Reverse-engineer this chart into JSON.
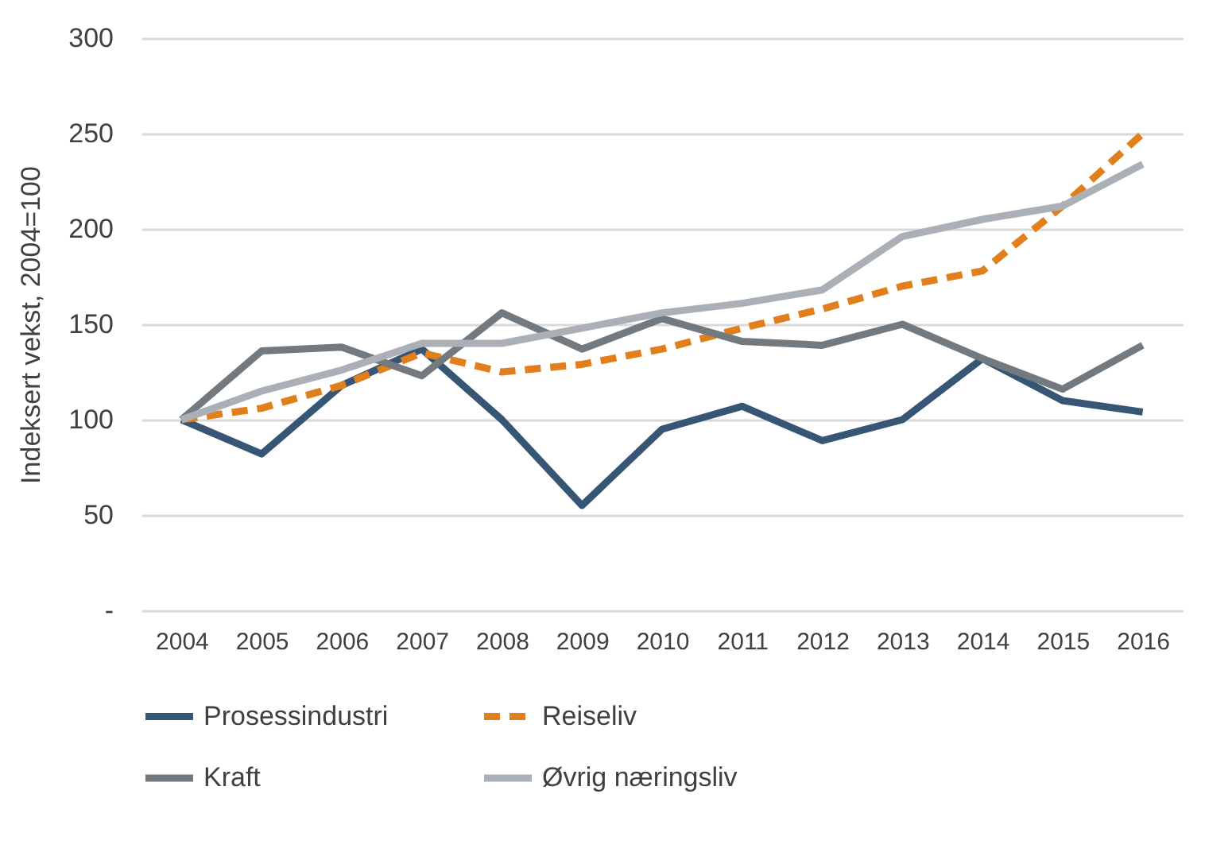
{
  "chart_data": {
    "type": "line",
    "ylabel": "Indeksert vekst, 2004=100",
    "categories": [
      "2004",
      "2005",
      "2006",
      "2007",
      "2008",
      "2009",
      "2010",
      "2011",
      "2012",
      "2013",
      "2014",
      "2015",
      "2016"
    ],
    "ylim": [
      0,
      300
    ],
    "yticks": [
      {
        "value": 0,
        "label": "-"
      },
      50,
      100,
      150,
      200,
      250,
      300
    ],
    "grid": "y",
    "legend": "bottom",
    "marker": "none",
    "series": [
      {
        "name": "Prosessindustri",
        "color": "#375675",
        "line_style": "solid",
        "values": [
          100,
          82,
          118,
          137,
          100,
          55,
          95,
          107,
          89,
          100,
          132,
          110,
          104
        ]
      },
      {
        "name": "Reiseliv",
        "color": "#e07f1b",
        "line_style": "dashed",
        "values": [
          100,
          106,
          118,
          135,
          125,
          129,
          137,
          148,
          158,
          170,
          178,
          212,
          250
        ]
      },
      {
        "name": "Kraft",
        "color": "#72797f",
        "line_style": "solid",
        "values": [
          100,
          136,
          138,
          123,
          156,
          137,
          153,
          141,
          139,
          150,
          132,
          116,
          139
        ]
      },
      {
        "name": "Øvrig næringsliv",
        "color": "#aab0b5",
        "line_style": "solid",
        "values": [
          100,
          115,
          126,
          140,
          140,
          148,
          156,
          161,
          168,
          196,
          205,
          212,
          234
        ]
      }
    ]
  }
}
